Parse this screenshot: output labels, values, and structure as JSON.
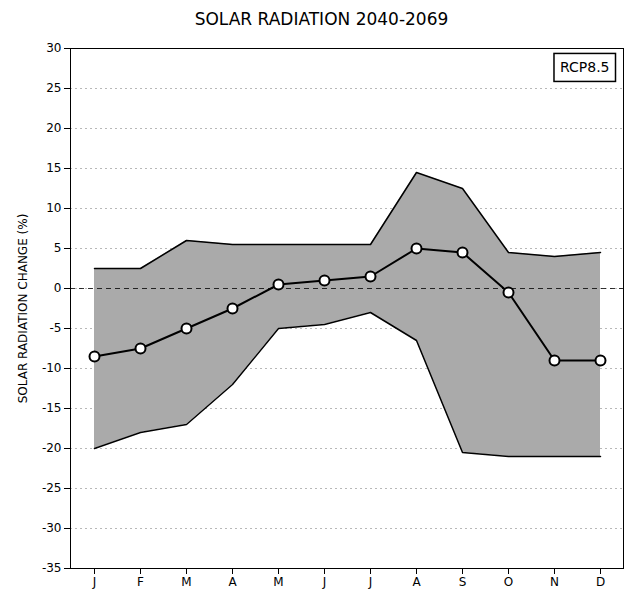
{
  "chart_data": {
    "type": "line",
    "title": "SOLAR RADIATION 2040-2069",
    "ylabel": "SOLAR RADIATION CHANGE (%)",
    "categories": [
      "J",
      "F",
      "M",
      "A",
      "M",
      "J",
      "J",
      "A",
      "S",
      "O",
      "N",
      "D"
    ],
    "series": [
      {
        "name": "RCP8.5",
        "color": "#000000",
        "marker": "circle",
        "values": [
          -8.5,
          -7.5,
          -5.0,
          -2.5,
          0.5,
          1.0,
          1.5,
          5.0,
          4.5,
          -0.5,
          -9.0,
          -9.0
        ],
        "upper": [
          2.5,
          2.5,
          6.0,
          5.5,
          5.5,
          5.5,
          5.5,
          14.5,
          12.5,
          4.5,
          4.0,
          4.5
        ],
        "lower": [
          -20.0,
          -18.0,
          -17.0,
          -12.0,
          -5.0,
          -4.5,
          -3.0,
          -6.5,
          -20.5,
          -21.0,
          -21.0,
          -21.0
        ]
      }
    ],
    "color": "#aaaaaa",
    "ylim": [
      -35,
      30
    ],
    "yticks": [
      -35,
      -30,
      -25,
      -20,
      -15,
      -10,
      -5,
      0,
      5,
      10,
      15,
      20,
      25,
      30
    ],
    "grid": true,
    "legend": "upper right"
  }
}
